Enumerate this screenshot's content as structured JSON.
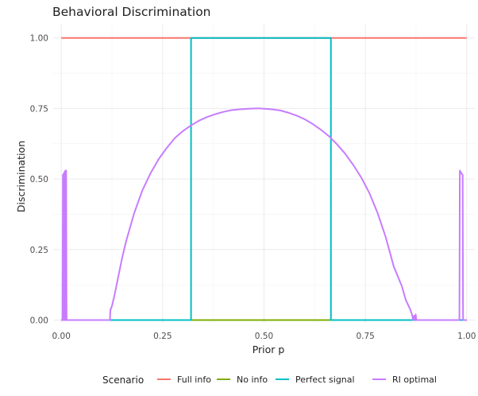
{
  "chart_data": {
    "type": "line",
    "title": "Behavioral Discrimination",
    "xlabel": "Prior p",
    "ylabel": "Discrimination",
    "xlim": [
      -0.02,
      1.02
    ],
    "ylim": [
      -0.01,
      1.05
    ],
    "x_ticks": [
      0.0,
      0.25,
      0.5,
      0.75,
      1.0
    ],
    "x_tick_labels": [
      "0.00",
      "0.25",
      "0.50",
      "0.75",
      "1.00"
    ],
    "y_ticks": [
      0.0,
      0.25,
      0.5,
      0.75,
      1.0
    ],
    "y_tick_labels": [
      "0.00",
      "0.25",
      "0.50",
      "0.75",
      "1.00"
    ],
    "grid": true,
    "legend": {
      "title": "Scenario",
      "position": "bottom"
    },
    "series": [
      {
        "name": "Full info",
        "color": "#F8766D",
        "x": [
          0,
          1
        ],
        "y": [
          1,
          1
        ]
      },
      {
        "name": "No info",
        "color": "#7CAE00",
        "x": [
          0,
          1
        ],
        "y": [
          0,
          0
        ]
      },
      {
        "name": "Perfect signal",
        "color": "#00BFC4",
        "x": [
          0,
          0.32,
          0.32,
          0.665,
          0.665,
          1
        ],
        "y": [
          0,
          0,
          1,
          1,
          0,
          0
        ]
      },
      {
        "name": "RI optimal",
        "color": "#C77CFF",
        "x": [
          0,
          0.003,
          0.004,
          0.005,
          0.006,
          0.007,
          0.008,
          0.009,
          0.01,
          0.011,
          0.012,
          0.013,
          0.12,
          0.121,
          0.125,
          0.13,
          0.14,
          0.15,
          0.16,
          0.17,
          0.18,
          0.19,
          0.2,
          0.22,
          0.24,
          0.26,
          0.28,
          0.3,
          0.32,
          0.34,
          0.36,
          0.38,
          0.4,
          0.42,
          0.44,
          0.46,
          0.48,
          0.49,
          0.5,
          0.52,
          0.54,
          0.56,
          0.58,
          0.6,
          0.62,
          0.64,
          0.66,
          0.68,
          0.7,
          0.72,
          0.74,
          0.76,
          0.78,
          0.8,
          0.82,
          0.84,
          0.85,
          0.86,
          0.865,
          0.868,
          0.87,
          0.872,
          0.874,
          0.876,
          0.878,
          0.88,
          0.982,
          0.983,
          0.985,
          0.987,
          0.989,
          0.99,
          0.991,
          1.0
        ],
        "y": [
          0,
          0,
          0.515,
          0,
          0.52,
          0,
          0.525,
          0,
          0.53,
          0,
          0.53,
          0,
          0,
          0.035,
          0.05,
          0.08,
          0.15,
          0.22,
          0.28,
          0.33,
          0.38,
          0.42,
          0.46,
          0.52,
          0.57,
          0.61,
          0.645,
          0.67,
          0.69,
          0.707,
          0.72,
          0.73,
          0.738,
          0.744,
          0.747,
          0.749,
          0.75,
          0.75,
          0.749,
          0.747,
          0.743,
          0.735,
          0.725,
          0.712,
          0.695,
          0.675,
          0.652,
          0.623,
          0.59,
          0.55,
          0.505,
          0.45,
          0.38,
          0.295,
          0.19,
          0.12,
          0.07,
          0.04,
          0.02,
          0.0,
          0.015,
          0.0,
          0.02,
          0.0,
          0.0,
          0.0,
          0.0,
          0.53,
          0.525,
          0.52,
          0.515,
          0.515,
          0.0,
          0
        ]
      }
    ]
  }
}
